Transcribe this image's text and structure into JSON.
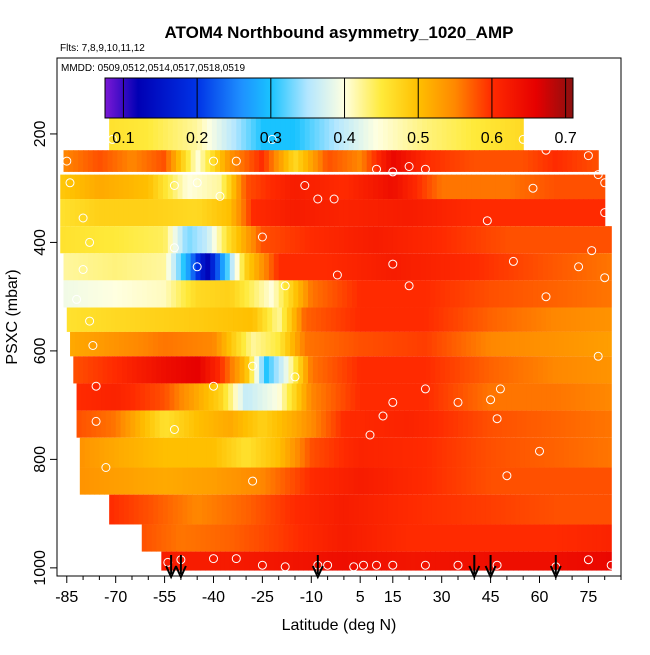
{
  "chart_data": {
    "type": "heatmap",
    "title": "ATOM4 Northbound asymmetry_1020_AMP",
    "flights_label": "Flts: 7,8,9,10,11,12",
    "dates_label": "MMDD: 0509,0512,0514,0517,0518,0519",
    "xlabel": "Latitude (deg N)",
    "ylabel": "PSXC (mbar)",
    "xlim": [
      -88,
      85
    ],
    "ylim": [
      1015,
      60
    ],
    "x_ticks": [
      -85,
      -70,
      -55,
      -40,
      -25,
      -10,
      5,
      15,
      30,
      45,
      60,
      75
    ],
    "x_minor_step": 5,
    "y_ticks": [
      200,
      400,
      600,
      800,
      1000
    ],
    "colorbar": {
      "min": 0.075,
      "max": 0.71,
      "ticks": [
        0.1,
        0.2,
        0.3,
        0.4,
        0.5,
        0.6,
        0.7
      ],
      "stops": [
        [
          0.075,
          "#7b18d6"
        ],
        [
          0.12,
          "#0000b4"
        ],
        [
          0.2,
          "#0033e6"
        ],
        [
          0.26,
          "#1e90ff"
        ],
        [
          0.3,
          "#19c3ff"
        ],
        [
          0.35,
          "#b3e6ff"
        ],
        [
          0.4,
          "#ffffe0"
        ],
        [
          0.45,
          "#ffea3a"
        ],
        [
          0.5,
          "#ffbf00"
        ],
        [
          0.55,
          "#ff8800"
        ],
        [
          0.6,
          "#ff2a00"
        ],
        [
          0.66,
          "#e60000"
        ],
        [
          0.71,
          "#8b1010"
        ]
      ]
    },
    "arrows_lat": [
      -53,
      -50,
      -8,
      40,
      45,
      65
    ],
    "bands": [
      {
        "p": 200,
        "top": 159,
        "bot": 240,
        "lat0": -72,
        "lat1": 55,
        "knots": [
          [
            -72,
            0.46
          ],
          [
            -60,
            0.45
          ],
          [
            -45,
            0.42
          ],
          [
            -35,
            0.36
          ],
          [
            -25,
            0.3
          ],
          [
            -15,
            0.3
          ],
          [
            0,
            0.36
          ],
          [
            10,
            0.4
          ],
          [
            25,
            0.43
          ],
          [
            40,
            0.45
          ],
          [
            55,
            0.47
          ]
        ]
      },
      {
        "p": 250,
        "top": 230,
        "bot": 270,
        "lat0": -86,
        "lat1": 78,
        "knots": [
          [
            -86,
            0.55
          ],
          [
            -75,
            0.58
          ],
          [
            -65,
            0.55
          ],
          [
            -55,
            0.58
          ],
          [
            -45,
            0.4
          ],
          [
            -35,
            0.54
          ],
          [
            -25,
            0.6
          ],
          [
            -15,
            0.47
          ],
          [
            -5,
            0.58
          ],
          [
            5,
            0.55
          ],
          [
            15,
            0.65
          ],
          [
            25,
            0.6
          ],
          [
            40,
            0.58
          ],
          [
            55,
            0.58
          ],
          [
            65,
            0.6
          ],
          [
            78,
            0.58
          ]
        ]
      },
      {
        "p": 300,
        "top": 275,
        "bot": 320,
        "lat0": -87,
        "lat1": 80,
        "knots": [
          [
            -87,
            0.49
          ],
          [
            -75,
            0.52
          ],
          [
            -60,
            0.5
          ],
          [
            -48,
            0.4
          ],
          [
            -38,
            0.42
          ],
          [
            -30,
            0.58
          ],
          [
            -15,
            0.62
          ],
          [
            0,
            0.6
          ],
          [
            15,
            0.64
          ],
          [
            30,
            0.56
          ],
          [
            50,
            0.56
          ],
          [
            65,
            0.58
          ],
          [
            80,
            0.58
          ]
        ]
      },
      {
        "p": 350,
        "top": 320,
        "bot": 370,
        "lat0": -87,
        "lat1": 80,
        "knots": [
          [
            -87,
            0.46
          ],
          [
            -75,
            0.48
          ],
          [
            -60,
            0.48
          ],
          [
            -45,
            0.47
          ],
          [
            -35,
            0.5
          ],
          [
            -28,
            0.6
          ],
          [
            -15,
            0.62
          ],
          [
            0,
            0.61
          ],
          [
            20,
            0.62
          ],
          [
            40,
            0.6
          ],
          [
            60,
            0.6
          ],
          [
            80,
            0.6
          ]
        ]
      },
      {
        "p": 400,
        "top": 370,
        "bot": 420,
        "lat0": -87,
        "lat1": 82,
        "knots": [
          [
            -87,
            0.46
          ],
          [
            -70,
            0.45
          ],
          [
            -55,
            0.44
          ],
          [
            -48,
            0.33
          ],
          [
            -42,
            0.36
          ],
          [
            -35,
            0.47
          ],
          [
            -25,
            0.58
          ],
          [
            -10,
            0.6
          ],
          [
            10,
            0.62
          ],
          [
            30,
            0.6
          ],
          [
            50,
            0.58
          ],
          [
            70,
            0.58
          ],
          [
            82,
            0.58
          ]
        ]
      },
      {
        "p": 450,
        "top": 420,
        "bot": 470,
        "lat0": -86,
        "lat1": 82,
        "knots": [
          [
            -86,
            0.42
          ],
          [
            -70,
            0.43
          ],
          [
            -55,
            0.42
          ],
          [
            -48,
            0.28
          ],
          [
            -42,
            0.12
          ],
          [
            -37,
            0.28
          ],
          [
            -30,
            0.48
          ],
          [
            -20,
            0.6
          ],
          [
            -5,
            0.6
          ],
          [
            15,
            0.62
          ],
          [
            40,
            0.6
          ],
          [
            60,
            0.58
          ],
          [
            82,
            0.56
          ]
        ]
      },
      {
        "p": 500,
        "top": 470,
        "bot": 520,
        "lat0": -86,
        "lat1": 82,
        "knots": [
          [
            -86,
            0.39
          ],
          [
            -70,
            0.4
          ],
          [
            -55,
            0.41
          ],
          [
            -45,
            0.47
          ],
          [
            -35,
            0.48
          ],
          [
            -22,
            0.4
          ],
          [
            -10,
            0.56
          ],
          [
            5,
            0.6
          ],
          [
            25,
            0.6
          ],
          [
            45,
            0.58
          ],
          [
            65,
            0.57
          ],
          [
            82,
            0.56
          ]
        ]
      },
      {
        "p": 550,
        "top": 520,
        "bot": 565,
        "lat0": -85,
        "lat1": 82,
        "knots": [
          [
            -85,
            0.46
          ],
          [
            -70,
            0.47
          ],
          [
            -55,
            0.48
          ],
          [
            -40,
            0.49
          ],
          [
            -28,
            0.5
          ],
          [
            -20,
            0.42
          ],
          [
            -12,
            0.57
          ],
          [
            5,
            0.6
          ],
          [
            25,
            0.6
          ],
          [
            45,
            0.57
          ],
          [
            65,
            0.55
          ],
          [
            82,
            0.54
          ]
        ]
      },
      {
        "p": 600,
        "top": 565,
        "bot": 610,
        "lat0": -84,
        "lat1": 82,
        "knots": [
          [
            -84,
            0.52
          ],
          [
            -70,
            0.54
          ],
          [
            -55,
            0.56
          ],
          [
            -40,
            0.55
          ],
          [
            -28,
            0.42
          ],
          [
            -20,
            0.45
          ],
          [
            -12,
            0.56
          ],
          [
            5,
            0.58
          ],
          [
            25,
            0.59
          ],
          [
            45,
            0.55
          ],
          [
            65,
            0.54
          ],
          [
            82,
            0.53
          ]
        ]
      },
      {
        "p": 650,
        "top": 610,
        "bot": 660,
        "lat0": -83,
        "lat1": 82,
        "knots": [
          [
            -83,
            0.58
          ],
          [
            -70,
            0.6
          ],
          [
            -55,
            0.64
          ],
          [
            -45,
            0.66
          ],
          [
            -38,
            0.6
          ],
          [
            -30,
            0.5
          ],
          [
            -24,
            0.3
          ],
          [
            -18,
            0.38
          ],
          [
            -10,
            0.56
          ],
          [
            5,
            0.6
          ],
          [
            25,
            0.6
          ],
          [
            45,
            0.57
          ],
          [
            65,
            0.55
          ],
          [
            82,
            0.54
          ]
        ]
      },
      {
        "p": 700,
        "top": 660,
        "bot": 710,
        "lat0": -82,
        "lat1": 82,
        "knots": [
          [
            -82,
            0.6
          ],
          [
            -70,
            0.61
          ],
          [
            -55,
            0.58
          ],
          [
            -45,
            0.52
          ],
          [
            -38,
            0.48
          ],
          [
            -30,
            0.36
          ],
          [
            -20,
            0.4
          ],
          [
            -10,
            0.55
          ],
          [
            5,
            0.6
          ],
          [
            25,
            0.6
          ],
          [
            45,
            0.56
          ],
          [
            65,
            0.56
          ],
          [
            82,
            0.55
          ]
        ]
      },
      {
        "p": 750,
        "top": 710,
        "bot": 760,
        "lat0": -82,
        "lat1": 82,
        "knots": [
          [
            -82,
            0.58
          ],
          [
            -70,
            0.56
          ],
          [
            -55,
            0.46
          ],
          [
            -45,
            0.5
          ],
          [
            -35,
            0.52
          ],
          [
            -25,
            0.48
          ],
          [
            -15,
            0.52
          ],
          [
            0,
            0.6
          ],
          [
            20,
            0.61
          ],
          [
            45,
            0.58
          ],
          [
            65,
            0.57
          ],
          [
            82,
            0.56
          ]
        ]
      },
      {
        "p": 800,
        "top": 760,
        "bot": 815,
        "lat0": -81,
        "lat1": 82,
        "knots": [
          [
            -81,
            0.54
          ],
          [
            -70,
            0.52
          ],
          [
            -55,
            0.5
          ],
          [
            -40,
            0.5
          ],
          [
            -30,
            0.46
          ],
          [
            -20,
            0.5
          ],
          [
            -10,
            0.58
          ],
          [
            5,
            0.61
          ],
          [
            25,
            0.6
          ],
          [
            45,
            0.58
          ],
          [
            65,
            0.57
          ],
          [
            82,
            0.56
          ]
        ]
      },
      {
        "p": 850,
        "top": 815,
        "bot": 865,
        "lat0": -81,
        "lat1": 82,
        "knots": [
          [
            -81,
            0.54
          ],
          [
            -70,
            0.53
          ],
          [
            -55,
            0.52
          ],
          [
            -40,
            0.53
          ],
          [
            -25,
            0.55
          ],
          [
            -10,
            0.6
          ],
          [
            5,
            0.62
          ],
          [
            25,
            0.6
          ],
          [
            45,
            0.58
          ],
          [
            65,
            0.58
          ],
          [
            82,
            0.58
          ]
        ]
      },
      {
        "p": 900,
        "top": 865,
        "bot": 920,
        "lat0": -72,
        "lat1": 82,
        "knots": [
          [
            -72,
            0.6
          ],
          [
            -60,
            0.58
          ],
          [
            -45,
            0.55
          ],
          [
            -30,
            0.57
          ],
          [
            -15,
            0.6
          ],
          [
            0,
            0.62
          ],
          [
            20,
            0.6
          ],
          [
            45,
            0.59
          ],
          [
            65,
            0.58
          ],
          [
            82,
            0.58
          ]
        ]
      },
      {
        "p": 960,
        "top": 920,
        "bot": 970,
        "lat0": -62,
        "lat1": 82,
        "knots": [
          [
            -62,
            0.58
          ],
          [
            -50,
            0.56
          ],
          [
            -35,
            0.57
          ],
          [
            -20,
            0.59
          ],
          [
            0,
            0.62
          ],
          [
            20,
            0.6
          ],
          [
            45,
            0.6
          ],
          [
            65,
            0.6
          ],
          [
            82,
            0.61
          ]
        ]
      },
      {
        "p": 1000,
        "top": 970,
        "bot": 1005,
        "lat0": -56,
        "lat1": 82,
        "knots": [
          [
            -56,
            0.62
          ],
          [
            -40,
            0.62
          ],
          [
            -20,
            0.63
          ],
          [
            0,
            0.64
          ],
          [
            20,
            0.63
          ],
          [
            45,
            0.64
          ],
          [
            65,
            0.64
          ],
          [
            82,
            0.65
          ]
        ]
      }
    ],
    "samples": [
      [
        -85,
        250
      ],
      [
        -71,
        210
      ],
      [
        -84,
        290
      ],
      [
        -80,
        355
      ],
      [
        -78,
        400
      ],
      [
        -80,
        450
      ],
      [
        -82,
        505
      ],
      [
        -78,
        545
      ],
      [
        -77,
        590
      ],
      [
        -76,
        665
      ],
      [
        -76,
        730
      ],
      [
        -73,
        815
      ],
      [
        -40,
        250
      ],
      [
        -52,
        295
      ],
      [
        -45,
        290
      ],
      [
        -33,
        250
      ],
      [
        -22,
        210
      ],
      [
        -38,
        315
      ],
      [
        -12,
        295
      ],
      [
        -25,
        390
      ],
      [
        -45,
        445
      ],
      [
        -52,
        410
      ],
      [
        -18,
        480
      ],
      [
        -40,
        665
      ],
      [
        -28,
        628
      ],
      [
        -15,
        648
      ],
      [
        -52,
        745
      ],
      [
        -28,
        840
      ],
      [
        -8,
        320
      ],
      [
        -3,
        320
      ],
      [
        10,
        265
      ],
      [
        15,
        270
      ],
      [
        20,
        260
      ],
      [
        25,
        265
      ],
      [
        -2,
        460
      ],
      [
        15,
        440
      ],
      [
        20,
        480
      ],
      [
        25,
        670
      ],
      [
        15,
        695
      ],
      [
        35,
        695
      ],
      [
        45,
        690
      ],
      [
        47,
        725
      ],
      [
        12,
        720
      ],
      [
        8,
        755
      ],
      [
        48,
        670
      ],
      [
        52,
        435
      ],
      [
        44,
        360
      ],
      [
        55,
        210
      ],
      [
        58,
        300
      ],
      [
        62,
        230
      ],
      [
        68,
        210
      ],
      [
        73,
        210
      ],
      [
        75,
        240
      ],
      [
        78,
        275
      ],
      [
        82,
        275
      ],
      [
        80,
        290
      ],
      [
        80,
        345
      ],
      [
        76,
        415
      ],
      [
        72,
        445
      ],
      [
        62,
        500
      ],
      [
        80,
        465
      ],
      [
        78,
        610
      ],
      [
        60,
        785
      ],
      [
        50,
        830
      ],
      [
        -54,
        990
      ],
      [
        -50,
        985
      ],
      [
        -40,
        983
      ],
      [
        -33,
        983
      ],
      [
        -25,
        995
      ],
      [
        -18,
        998
      ],
      [
        -8,
        995
      ],
      [
        -5,
        995
      ],
      [
        3,
        998
      ],
      [
        6,
        995
      ],
      [
        10,
        995
      ],
      [
        15,
        995
      ],
      [
        25,
        995
      ],
      [
        35,
        995
      ],
      [
        47,
        995
      ],
      [
        65,
        998
      ],
      [
        75,
        985
      ],
      [
        82,
        995
      ]
    ]
  }
}
